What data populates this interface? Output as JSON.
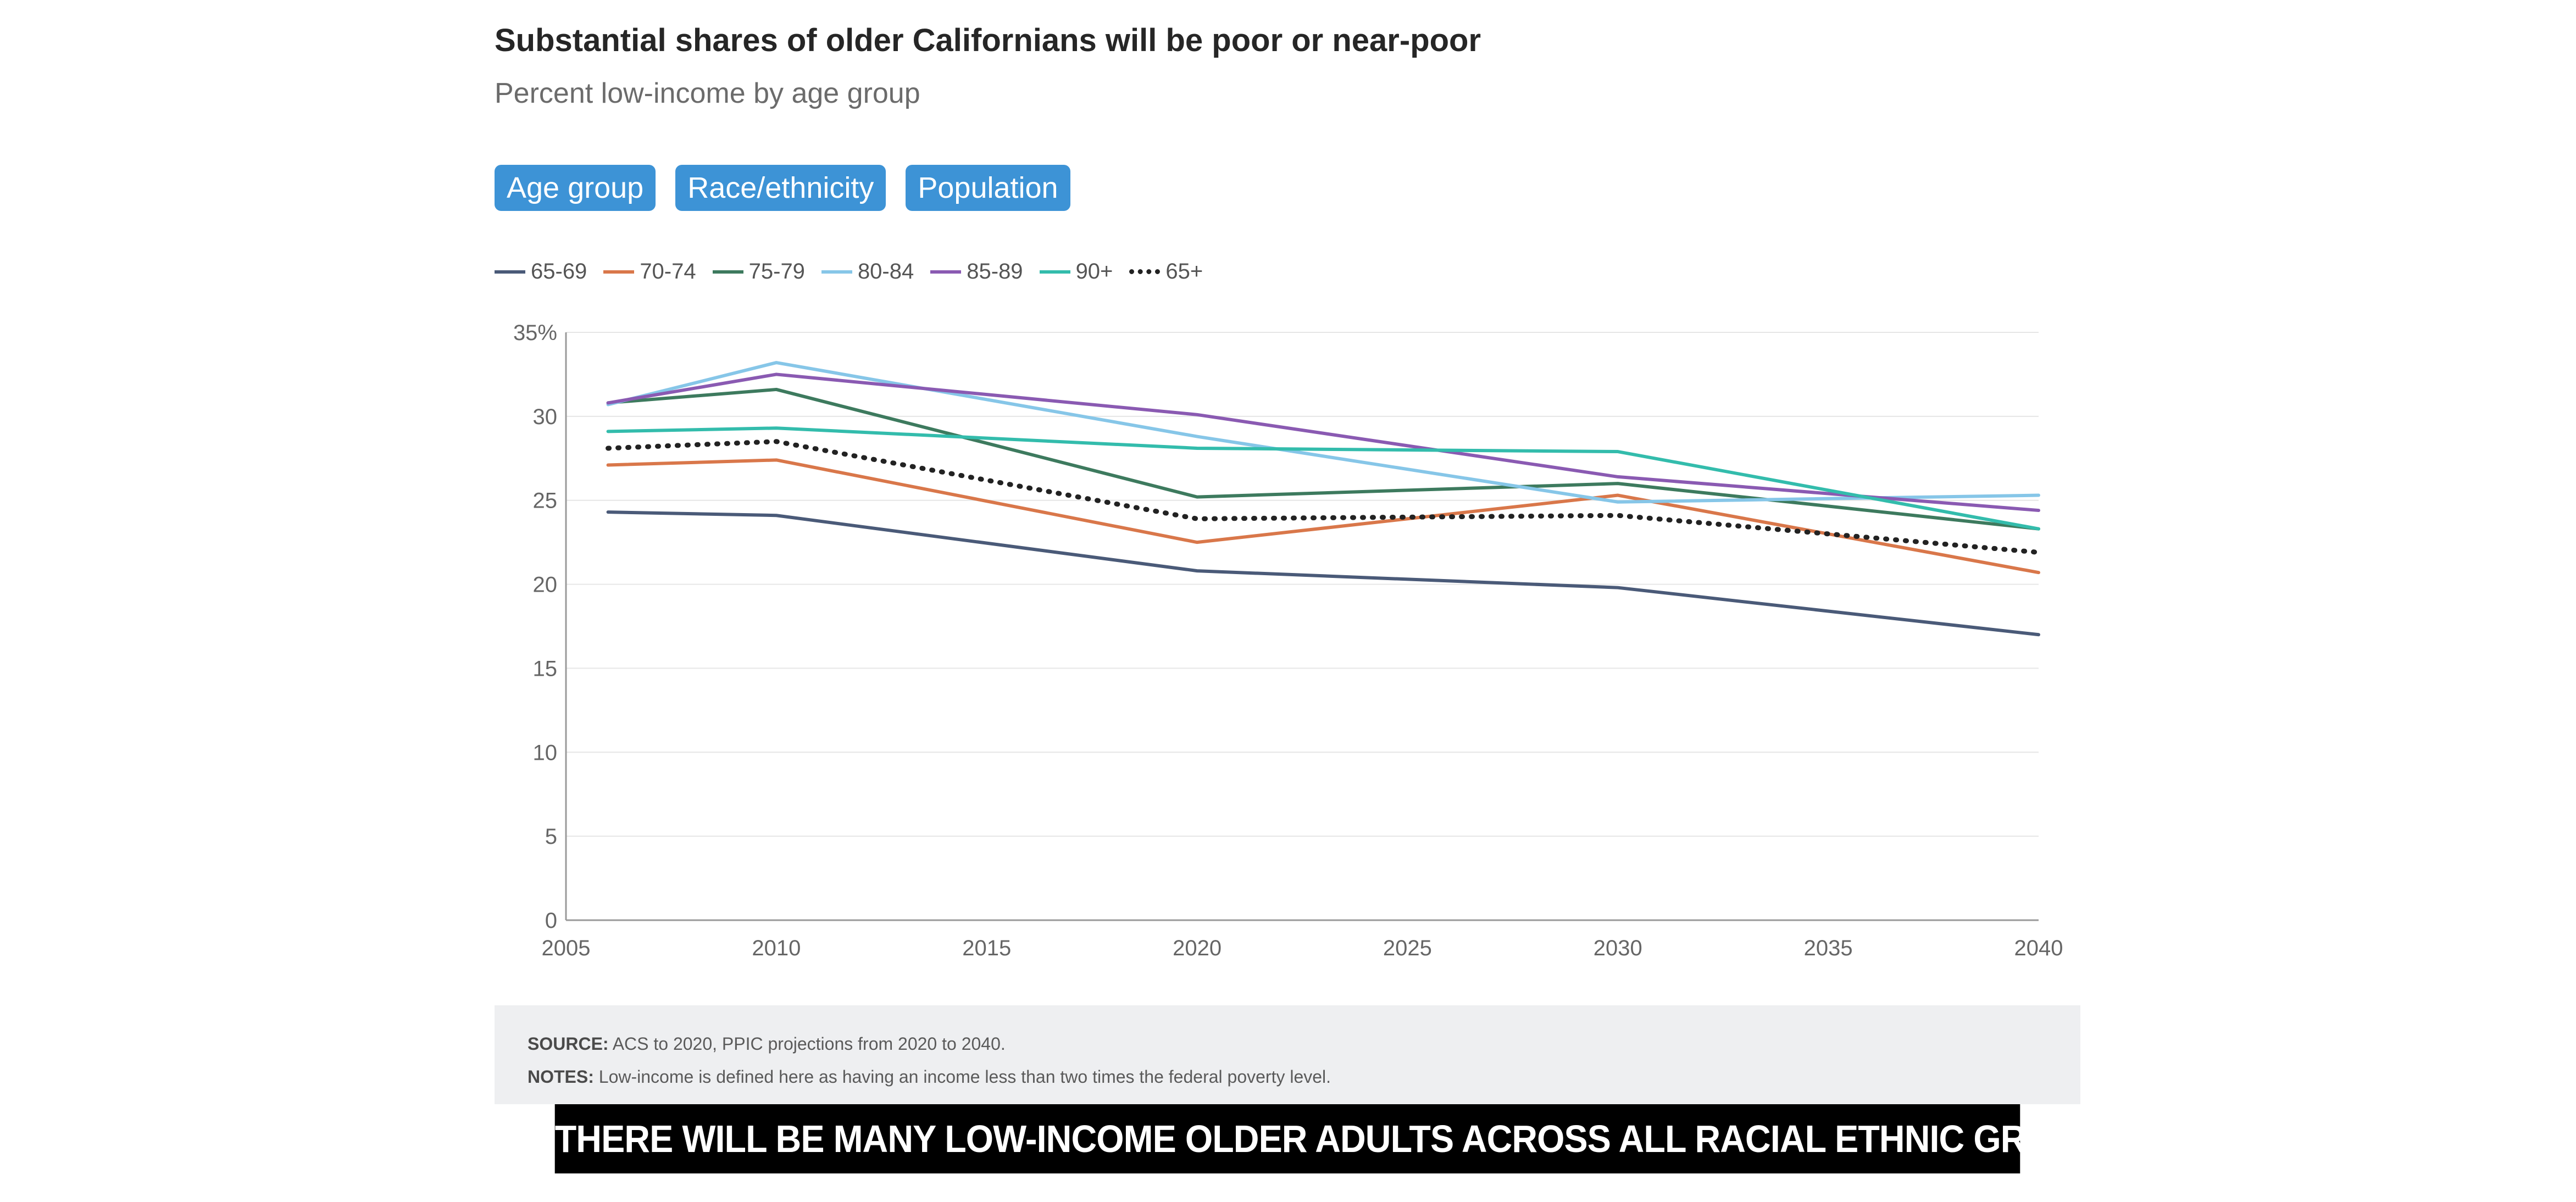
{
  "header": {
    "title": "Substantial shares of older Californians will be poor or near-poor",
    "subtitle": "Percent low-income by age group"
  },
  "tabs": [
    {
      "label": "Age group"
    },
    {
      "label": "Race/ethnicity"
    },
    {
      "label": "Population"
    }
  ],
  "footer": {
    "source_label": "SOURCE:",
    "source_text": "ACS to 2020, PPIC projections from 2020 to 2040.",
    "notes_label": "NOTES:",
    "notes_text": "Low-income is defined here as having an income less than two times the federal poverty level.",
    "banner": "THERE WILL BE MANY LOW-INCOME OLDER ADULTS ACROSS ALL RACIAL ETHNIC GROUPS"
  },
  "colors": {
    "tab_background": "#3d93d6",
    "banner_background": "#000000",
    "notes_background": "#eeeff1"
  },
  "chart_data": {
    "type": "line",
    "title": "Substantial shares of older Californians will be poor or near-poor",
    "subtitle": "Percent low-income by age group",
    "xlabel": "",
    "ylabel": "",
    "xlim": [
      2005,
      2040
    ],
    "ylim": [
      0,
      35
    ],
    "x_ticks": [
      "2005",
      "2010",
      "2015",
      "2020",
      "2025",
      "2030",
      "2035",
      "2040"
    ],
    "y_ticks": [
      "0",
      "5",
      "10",
      "15",
      "20",
      "25",
      "30",
      "35%"
    ],
    "grid": "horizontal",
    "legend_position": "top-left",
    "x": [
      2006,
      2010,
      2020,
      2030,
      2040
    ],
    "series": [
      {
        "name": "65-69",
        "color": "#4a5a78",
        "style": "solid",
        "values": [
          24.3,
          24.1,
          20.8,
          19.8,
          17.0
        ]
      },
      {
        "name": "70-74",
        "color": "#d9774a",
        "style": "solid",
        "values": [
          27.1,
          27.4,
          22.5,
          25.3,
          20.7
        ]
      },
      {
        "name": "75-79",
        "color": "#3d7a5e",
        "style": "solid",
        "values": [
          30.8,
          31.6,
          25.2,
          26.0,
          23.3
        ]
      },
      {
        "name": "80-84",
        "color": "#86c6e8",
        "style": "solid",
        "values": [
          30.7,
          33.2,
          28.8,
          24.9,
          25.3
        ]
      },
      {
        "name": "85-89",
        "color": "#8a5ab2",
        "style": "solid",
        "values": [
          30.8,
          32.5,
          30.1,
          26.4,
          24.4
        ]
      },
      {
        "name": "90+",
        "color": "#33bcac",
        "style": "solid",
        "values": [
          29.1,
          29.3,
          28.1,
          27.9,
          23.3
        ]
      },
      {
        "name": "65+",
        "color": "#222222",
        "style": "dotted",
        "values": [
          28.1,
          28.5,
          23.9,
          24.1,
          21.9
        ]
      }
    ]
  }
}
